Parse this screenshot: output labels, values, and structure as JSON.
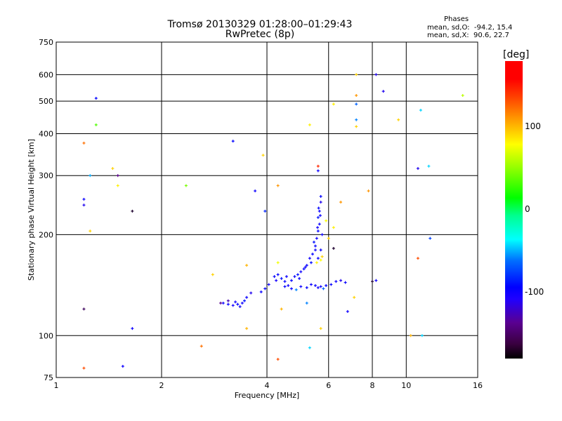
{
  "chart_data": {
    "type": "scatter",
    "title": "Tromsø 20130329 01:28:00–01:29:43",
    "subtitle": "RwPretec (8p)",
    "xlabel": "Frequency [MHz]",
    "ylabel": "Stationary phase Virtual Height [km]",
    "xscale": "log",
    "yscale": "log",
    "xlim": [
      1,
      16
    ],
    "ylim": [
      75,
      750
    ],
    "xticks": [
      1,
      2,
      4,
      6,
      8,
      10,
      16
    ],
    "yticks": [
      75,
      100,
      200,
      300,
      400,
      500,
      600,
      750
    ],
    "x_grid": [
      2,
      4,
      6,
      8,
      10
    ],
    "y_grid": [
      100,
      200,
      300,
      400,
      500,
      600
    ],
    "colorbar": {
      "label": "[deg]",
      "range": [
        -180,
        180
      ],
      "ticks": [
        100,
        0,
        -100
      ]
    },
    "stats": {
      "heading": "Phases",
      "o_line": "mean, sd,O:  -94.2, 15.4",
      "x_line": "mean, sd,X:  90.6, 22.7"
    },
    "points_fields": [
      "frequency_MHz",
      "height_km",
      "phase_deg"
    ],
    "points": [
      [
        3.0,
        125,
        -110
      ],
      [
        3.1,
        124,
        -105
      ],
      [
        3.2,
        123,
        -115
      ],
      [
        3.3,
        124,
        -100
      ],
      [
        3.4,
        125,
        -110
      ],
      [
        3.45,
        127,
        -95
      ],
      [
        3.5,
        130,
        -105
      ],
      [
        3.6,
        134,
        -120
      ],
      [
        3.1,
        127,
        -140
      ],
      [
        2.95,
        125,
        -150
      ],
      [
        3.35,
        122,
        -108
      ],
      [
        3.25,
        126,
        -112
      ],
      [
        3.85,
        135,
        -105
      ],
      [
        3.95,
        138,
        -100
      ],
      [
        4.05,
        142,
        -110
      ],
      [
        4.2,
        150,
        -105
      ],
      [
        4.3,
        152,
        -100
      ],
      [
        4.4,
        148,
        -95
      ],
      [
        4.5,
        145,
        -105
      ],
      [
        4.6,
        141,
        -110
      ],
      [
        4.7,
        146,
        -100
      ],
      [
        4.8,
        150,
        -105
      ],
      [
        4.9,
        152,
        -95
      ],
      [
        5.0,
        155,
        -110
      ],
      [
        5.1,
        158,
        -100
      ],
      [
        5.2,
        162,
        -105
      ],
      [
        5.3,
        170,
        -110
      ],
      [
        5.4,
        175,
        -100
      ],
      [
        5.5,
        185,
        -105
      ],
      [
        5.55,
        195,
        -110
      ],
      [
        5.6,
        205,
        -100
      ],
      [
        5.65,
        215,
        -105
      ],
      [
        5.6,
        225,
        -95
      ],
      [
        5.65,
        235,
        -110
      ],
      [
        5.7,
        250,
        -120
      ],
      [
        5.7,
        260,
        -100
      ],
      [
        5.5,
        180,
        -110
      ],
      [
        5.45,
        190,
        -95
      ],
      [
        5.6,
        170,
        -105
      ],
      [
        5.7,
        180,
        -100
      ],
      [
        5.75,
        200,
        -110
      ],
      [
        5.62,
        240,
        -100
      ],
      [
        5.68,
        228,
        -105
      ],
      [
        5.58,
        210,
        -112
      ],
      [
        5.35,
        165,
        -98
      ],
      [
        5.15,
        160,
        -108
      ],
      [
        4.95,
        148,
        -102
      ],
      [
        4.55,
        150,
        -110
      ],
      [
        4.25,
        146,
        -115
      ],
      [
        4.5,
        140,
        -100
      ],
      [
        4.7,
        138,
        -105
      ],
      [
        5.0,
        140,
        -110
      ],
      [
        5.2,
        139,
        -100
      ],
      [
        5.5,
        141,
        -105
      ],
      [
        5.7,
        140,
        -110
      ],
      [
        5.9,
        141,
        -100
      ],
      [
        6.1,
        142,
        -105
      ],
      [
        6.3,
        145,
        -110
      ],
      [
        6.5,
        146,
        -120
      ],
      [
        6.7,
        144,
        -105
      ],
      [
        5.8,
        138,
        -70
      ],
      [
        4.85,
        137,
        -60
      ],
      [
        5.35,
        142,
        -108
      ],
      [
        5.6,
        139,
        -112
      ],
      [
        5.55,
        165,
        100
      ],
      [
        5.7,
        168,
        95
      ],
      [
        5.75,
        172,
        110
      ],
      [
        4.3,
        165,
        90
      ],
      [
        5.9,
        220,
        95
      ],
      [
        6.2,
        210,
        100
      ],
      [
        6.0,
        195,
        110
      ],
      [
        1.25,
        205,
        110
      ],
      [
        1.2,
        255,
        -110
      ],
      [
        1.2,
        245,
        -120
      ],
      [
        1.25,
        300,
        -50
      ],
      [
        1.2,
        375,
        140
      ],
      [
        1.3,
        510,
        -100
      ],
      [
        1.3,
        425,
        40
      ],
      [
        1.45,
        315,
        110
      ],
      [
        1.5,
        300,
        -150
      ],
      [
        1.5,
        280,
        100
      ],
      [
        1.65,
        235,
        -170
      ],
      [
        1.2,
        120,
        -160
      ],
      [
        1.65,
        105,
        -110
      ],
      [
        1.2,
        80,
        150
      ],
      [
        1.55,
        81,
        -110
      ],
      [
        2.35,
        280,
        50
      ],
      [
        2.6,
        93,
        140
      ],
      [
        3.2,
        380,
        -100
      ],
      [
        3.7,
        270,
        -110
      ],
      [
        3.9,
        345,
        110
      ],
      [
        3.95,
        235,
        -90
      ],
      [
        4.3,
        280,
        130
      ],
      [
        4.3,
        85,
        150
      ],
      [
        4.4,
        120,
        120
      ],
      [
        5.3,
        425,
        100
      ],
      [
        5.3,
        92,
        -40
      ],
      [
        5.6,
        320,
        160
      ],
      [
        5.6,
        310,
        -110
      ],
      [
        5.7,
        105,
        110
      ],
      [
        6.2,
        490,
        100
      ],
      [
        6.5,
        250,
        130
      ],
      [
        7.2,
        600,
        110
      ],
      [
        7.2,
        520,
        130
      ],
      [
        7.2,
        490,
        -70
      ],
      [
        7.2,
        440,
        -60
      ],
      [
        7.2,
        420,
        110
      ],
      [
        8.2,
        600,
        -120
      ],
      [
        8.6,
        535,
        -120
      ],
      [
        9.5,
        440,
        110
      ],
      [
        10.8,
        315,
        -120
      ],
      [
        11.0,
        470,
        -40
      ],
      [
        11.6,
        320,
        -40
      ],
      [
        11.7,
        195,
        -80
      ],
      [
        10.8,
        170,
        150
      ],
      [
        10.3,
        100,
        120
      ],
      [
        11.1,
        100,
        -40
      ],
      [
        8.0,
        145,
        -170
      ],
      [
        8.2,
        146,
        -110
      ],
      [
        7.8,
        270,
        130
      ],
      [
        14.5,
        520,
        70
      ],
      [
        6.8,
        118,
        -110
      ],
      [
        2.8,
        152,
        110
      ],
      [
        3.5,
        162,
        120
      ],
      [
        3.5,
        105,
        120
      ],
      [
        5.2,
        125,
        -60
      ],
      [
        7.1,
        130,
        110
      ],
      [
        6.2,
        182,
        -170
      ]
    ]
  }
}
